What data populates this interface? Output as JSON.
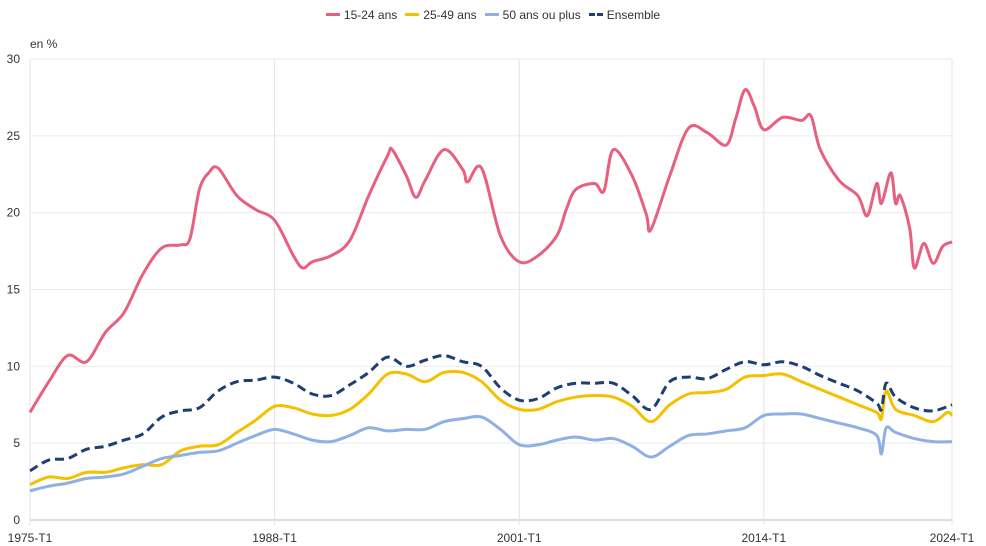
{
  "chart_data": {
    "type": "line",
    "title": "",
    "ylabel": "en %",
    "xlabel": "",
    "ylim": [
      0,
      30
    ],
    "yticks": [
      0,
      5,
      10,
      15,
      20,
      25,
      30
    ],
    "xrange": [
      "1975-T1",
      "2024-T1"
    ],
    "xticks": [
      "1975-T1",
      "1988-T1",
      "2001-T1",
      "2014-T1",
      "2024-T1"
    ],
    "grid": true,
    "legend_position": "top",
    "series": [
      {
        "name": "15-24 ans",
        "color": "#e8607f",
        "dash": false,
        "points": [
          [
            "1975-T1",
            7.0
          ],
          [
            "1976-T1",
            9.0
          ],
          [
            "1977-T1",
            10.7
          ],
          [
            "1978-T1",
            10.3
          ],
          [
            "1979-T1",
            12.2
          ],
          [
            "1980-T1",
            13.5
          ],
          [
            "1981-T1",
            16.0
          ],
          [
            "1982-T1",
            17.7
          ],
          [
            "1983-T1",
            17.9
          ],
          [
            "1983-T3",
            18.3
          ],
          [
            "1984-T1",
            21.5
          ],
          [
            "1984-T3",
            22.6
          ],
          [
            "1985-T1",
            22.9
          ],
          [
            "1986-T1",
            21.1
          ],
          [
            "1987-T1",
            20.2
          ],
          [
            "1988-T1",
            19.5
          ],
          [
            "1989-T1",
            17.2
          ],
          [
            "1989-T3",
            16.4
          ],
          [
            "1990-T1",
            16.8
          ],
          [
            "1991-T1",
            17.2
          ],
          [
            "1992-T1",
            18.2
          ],
          [
            "1993-T1",
            21.1
          ],
          [
            "1994-T1",
            23.7
          ],
          [
            "1994-T2",
            24.1
          ],
          [
            "1995-T1",
            22.4
          ],
          [
            "1995-T3",
            21.0
          ],
          [
            "1996-T1",
            22.1
          ],
          [
            "1997-T1",
            24.1
          ],
          [
            "1998-T1",
            22.8
          ],
          [
            "1998-T2",
            22.0
          ],
          [
            "1999-T1",
            22.9
          ],
          [
            "2000-T1",
            18.5
          ],
          [
            "2001-T1",
            16.8
          ],
          [
            "2002-T1",
            17.2
          ],
          [
            "2003-T1",
            18.5
          ],
          [
            "2003-T3",
            20.2
          ],
          [
            "2004-T1",
            21.5
          ],
          [
            "2005-T1",
            21.9
          ],
          [
            "2005-T3",
            21.4
          ],
          [
            "2006-T1",
            24.1
          ],
          [
            "2007-T1",
            22.4
          ],
          [
            "2007-T4",
            19.9
          ],
          [
            "2008-T1",
            18.9
          ],
          [
            "2009-T1",
            22.4
          ],
          [
            "2010-T1",
            25.5
          ],
          [
            "2011-T1",
            25.2
          ],
          [
            "2012-T1",
            24.4
          ],
          [
            "2012-T3",
            26.1
          ],
          [
            "2013-T1",
            28.0
          ],
          [
            "2013-T3",
            26.9
          ],
          [
            "2014-T1",
            25.4
          ],
          [
            "2015-T1",
            26.2
          ],
          [
            "2016-T1",
            26.0
          ],
          [
            "2016-T3",
            26.3
          ],
          [
            "2017-T1",
            24.1
          ],
          [
            "2018-T1",
            22.1
          ],
          [
            "2019-T1",
            21.1
          ],
          [
            "2019-T3",
            19.8
          ],
          [
            "2020-T1",
            21.9
          ],
          [
            "2020-T2",
            20.6
          ],
          [
            "2020-T4",
            22.6
          ],
          [
            "2021-T1",
            20.6
          ],
          [
            "2021-T2",
            21.1
          ],
          [
            "2021-T4",
            19.0
          ],
          [
            "2022-T1",
            16.4
          ],
          [
            "2022-T3",
            18.0
          ],
          [
            "2023-T1",
            16.7
          ],
          [
            "2023-T3",
            17.8
          ],
          [
            "2024-T1",
            18.1
          ]
        ]
      },
      {
        "name": "25-49 ans",
        "color": "#f5c000",
        "dash": false,
        "points": [
          [
            "1975-T1",
            2.3
          ],
          [
            "1976-T1",
            2.8
          ],
          [
            "1977-T1",
            2.7
          ],
          [
            "1978-T1",
            3.1
          ],
          [
            "1979-T1",
            3.1
          ],
          [
            "1980-T1",
            3.4
          ],
          [
            "1981-T1",
            3.6
          ],
          [
            "1982-T1",
            3.6
          ],
          [
            "1983-T1",
            4.5
          ],
          [
            "1984-T1",
            4.8
          ],
          [
            "1985-T1",
            4.9
          ],
          [
            "1986-T1",
            5.7
          ],
          [
            "1987-T1",
            6.5
          ],
          [
            "1988-T1",
            7.4
          ],
          [
            "1989-T1",
            7.3
          ],
          [
            "1990-T1",
            6.9
          ],
          [
            "1991-T1",
            6.8
          ],
          [
            "1992-T1",
            7.2
          ],
          [
            "1993-T1",
            8.2
          ],
          [
            "1994-T1",
            9.5
          ],
          [
            "1995-T1",
            9.5
          ],
          [
            "1996-T1",
            9.0
          ],
          [
            "1997-T1",
            9.6
          ],
          [
            "1998-T1",
            9.6
          ],
          [
            "1999-T1",
            9.0
          ],
          [
            "2000-T1",
            7.8
          ],
          [
            "2001-T1",
            7.2
          ],
          [
            "2002-T1",
            7.2
          ],
          [
            "2003-T1",
            7.7
          ],
          [
            "2004-T1",
            8.0
          ],
          [
            "2005-T1",
            8.1
          ],
          [
            "2006-T1",
            8.0
          ],
          [
            "2007-T1",
            7.4
          ],
          [
            "2008-T1",
            6.4
          ],
          [
            "2009-T1",
            7.5
          ],
          [
            "2010-T1",
            8.2
          ],
          [
            "2011-T1",
            8.3
          ],
          [
            "2012-T1",
            8.5
          ],
          [
            "2013-T1",
            9.3
          ],
          [
            "2014-T1",
            9.4
          ],
          [
            "2015-T1",
            9.5
          ],
          [
            "2016-T1",
            9.0
          ],
          [
            "2017-T1",
            8.5
          ],
          [
            "2018-T1",
            8.0
          ],
          [
            "2019-T1",
            7.5
          ],
          [
            "2020-T1",
            7.0
          ],
          [
            "2020-T2",
            6.6
          ],
          [
            "2020-T3",
            8.4
          ],
          [
            "2021-T1",
            7.2
          ],
          [
            "2022-T1",
            6.8
          ],
          [
            "2023-T1",
            6.4
          ],
          [
            "2023-T4",
            7.0
          ],
          [
            "2024-T1",
            6.8
          ]
        ]
      },
      {
        "name": "50 ans ou plus",
        "color": "#8fb0e3",
        "dash": false,
        "points": [
          [
            "1975-T1",
            1.9
          ],
          [
            "1976-T1",
            2.2
          ],
          [
            "1977-T1",
            2.4
          ],
          [
            "1978-T1",
            2.7
          ],
          [
            "1979-T1",
            2.8
          ],
          [
            "1980-T1",
            3.0
          ],
          [
            "1981-T1",
            3.5
          ],
          [
            "1982-T1",
            4.0
          ],
          [
            "1983-T1",
            4.2
          ],
          [
            "1984-T1",
            4.4
          ],
          [
            "1985-T1",
            4.5
          ],
          [
            "1986-T1",
            5.0
          ],
          [
            "1987-T1",
            5.5
          ],
          [
            "1988-T1",
            5.9
          ],
          [
            "1989-T1",
            5.6
          ],
          [
            "1990-T1",
            5.2
          ],
          [
            "1991-T1",
            5.1
          ],
          [
            "1992-T1",
            5.5
          ],
          [
            "1993-T1",
            6.0
          ],
          [
            "1994-T1",
            5.8
          ],
          [
            "1995-T1",
            5.9
          ],
          [
            "1996-T1",
            5.9
          ],
          [
            "1997-T1",
            6.4
          ],
          [
            "1998-T1",
            6.6
          ],
          [
            "1999-T1",
            6.7
          ],
          [
            "2000-T1",
            5.9
          ],
          [
            "2001-T1",
            4.9
          ],
          [
            "2002-T1",
            4.9
          ],
          [
            "2003-T1",
            5.2
          ],
          [
            "2004-T1",
            5.4
          ],
          [
            "2005-T1",
            5.2
          ],
          [
            "2006-T1",
            5.3
          ],
          [
            "2007-T1",
            4.8
          ],
          [
            "2008-T1",
            4.1
          ],
          [
            "2009-T1",
            4.8
          ],
          [
            "2010-T1",
            5.5
          ],
          [
            "2011-T1",
            5.6
          ],
          [
            "2012-T1",
            5.8
          ],
          [
            "2013-T1",
            6.0
          ],
          [
            "2014-T1",
            6.8
          ],
          [
            "2015-T1",
            6.9
          ],
          [
            "2016-T1",
            6.9
          ],
          [
            "2017-T1",
            6.6
          ],
          [
            "2018-T1",
            6.3
          ],
          [
            "2019-T1",
            6.0
          ],
          [
            "2020-T1",
            5.5
          ],
          [
            "2020-T2",
            4.3
          ],
          [
            "2020-T3",
            6.0
          ],
          [
            "2021-T1",
            5.7
          ],
          [
            "2022-T1",
            5.3
          ],
          [
            "2023-T1",
            5.1
          ],
          [
            "2024-T1",
            5.1
          ]
        ]
      },
      {
        "name": "Ensemble",
        "color": "#1d3f72",
        "dash": true,
        "points": [
          [
            "1975-T1",
            3.2
          ],
          [
            "1976-T1",
            3.9
          ],
          [
            "1977-T1",
            4.0
          ],
          [
            "1978-T1",
            4.6
          ],
          [
            "1979-T1",
            4.8
          ],
          [
            "1980-T1",
            5.2
          ],
          [
            "1981-T1",
            5.6
          ],
          [
            "1982-T1",
            6.7
          ],
          [
            "1983-T1",
            7.1
          ],
          [
            "1984-T1",
            7.3
          ],
          [
            "1985-T1",
            8.4
          ],
          [
            "1986-T1",
            9.0
          ],
          [
            "1987-T1",
            9.1
          ],
          [
            "1988-T1",
            9.3
          ],
          [
            "1989-T1",
            8.9
          ],
          [
            "1990-T1",
            8.2
          ],
          [
            "1991-T1",
            8.1
          ],
          [
            "1992-T1",
            8.8
          ],
          [
            "1993-T1",
            9.6
          ],
          [
            "1994-T1",
            10.6
          ],
          [
            "1995-T1",
            10.0
          ],
          [
            "1996-T1",
            10.4
          ],
          [
            "1997-T1",
            10.7
          ],
          [
            "1998-T1",
            10.3
          ],
          [
            "1999-T1",
            10.0
          ],
          [
            "2000-T1",
            8.6
          ],
          [
            "2001-T1",
            7.8
          ],
          [
            "2002-T1",
            7.9
          ],
          [
            "2003-T1",
            8.6
          ],
          [
            "2004-T1",
            8.9
          ],
          [
            "2005-T1",
            8.9
          ],
          [
            "2006-T1",
            8.9
          ],
          [
            "2007-T1",
            8.1
          ],
          [
            "2008-T1",
            7.2
          ],
          [
            "2009-T1",
            9.0
          ],
          [
            "2010-T1",
            9.3
          ],
          [
            "2011-T1",
            9.2
          ],
          [
            "2012-T1",
            9.8
          ],
          [
            "2013-T1",
            10.3
          ],
          [
            "2014-T1",
            10.1
          ],
          [
            "2015-T1",
            10.3
          ],
          [
            "2016-T1",
            10.0
          ],
          [
            "2017-T1",
            9.4
          ],
          [
            "2018-T1",
            8.9
          ],
          [
            "2019-T1",
            8.4
          ],
          [
            "2020-T1",
            7.6
          ],
          [
            "2020-T2",
            7.2
          ],
          [
            "2020-T3",
            8.9
          ],
          [
            "2021-T1",
            8.0
          ],
          [
            "2022-T1",
            7.3
          ],
          [
            "2023-T1",
            7.1
          ],
          [
            "2024-T1",
            7.5
          ]
        ]
      }
    ]
  }
}
